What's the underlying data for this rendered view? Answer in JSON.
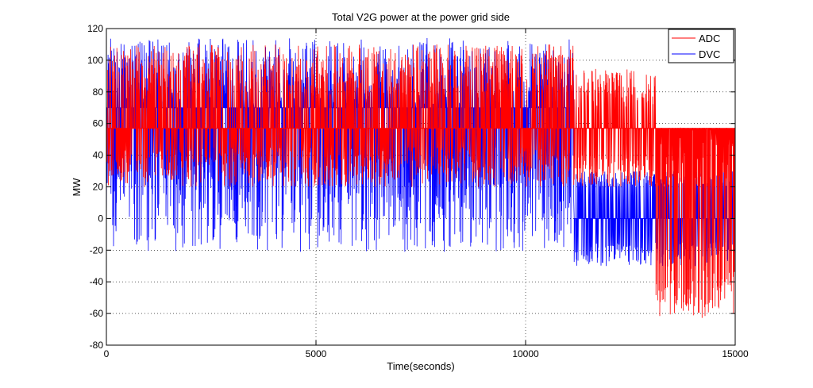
{
  "chart_data": {
    "type": "line",
    "title": "Total V2G power at the power grid side",
    "xlabel": "Time(seconds)",
    "ylabel": "MW",
    "xlim": [
      0,
      15000
    ],
    "ylim": [
      -80,
      120
    ],
    "xticks": [
      0,
      5000,
      10000,
      15000
    ],
    "yticks": [
      -80,
      -60,
      -40,
      -20,
      0,
      20,
      40,
      60,
      80,
      100,
      120
    ],
    "xtick_labels": [
      "0",
      "5000",
      "10000",
      "15000"
    ],
    "ytick_labels": [
      "-80",
      "-60",
      "-40",
      "-20",
      "0",
      "20",
      "40",
      "60",
      "80",
      "100",
      "120"
    ],
    "grid": true,
    "legend_position": "top-right",
    "sample_count": 1500,
    "series": [
      {
        "name": "ADC",
        "color": "#ff0000",
        "regimes": [
          {
            "x_start": 0,
            "x_end": 11150,
            "baseline": 57,
            "high_min": 78,
            "high_max": 110,
            "low_min": 20,
            "low_max": 45
          },
          {
            "x_start": 11150,
            "x_end": 13100,
            "baseline": 57,
            "high_min": 70,
            "high_max": 95,
            "low_min": 20,
            "low_max": 40
          },
          {
            "x_start": 13100,
            "x_end": 15000,
            "baseline": 57,
            "high_min": 20,
            "high_max": 57,
            "low_min": -63,
            "low_max": -30
          }
        ]
      },
      {
        "name": "DVC",
        "color": "#0000ff",
        "regimes": [
          {
            "x_start": 0,
            "x_end": 11150,
            "baseline": 70,
            "high_min": 70,
            "high_max": 114,
            "low_min": -21,
            "low_max": 40
          },
          {
            "x_start": 11150,
            "x_end": 13100,
            "baseline": 0,
            "high_min": 20,
            "high_max": 30,
            "low_min": -30,
            "low_max": -15
          },
          {
            "x_start": 13100,
            "x_end": 15000,
            "baseline": 0,
            "high_min": 20,
            "high_max": 30,
            "low_min": -30,
            "low_max": -15
          }
        ]
      }
    ]
  }
}
